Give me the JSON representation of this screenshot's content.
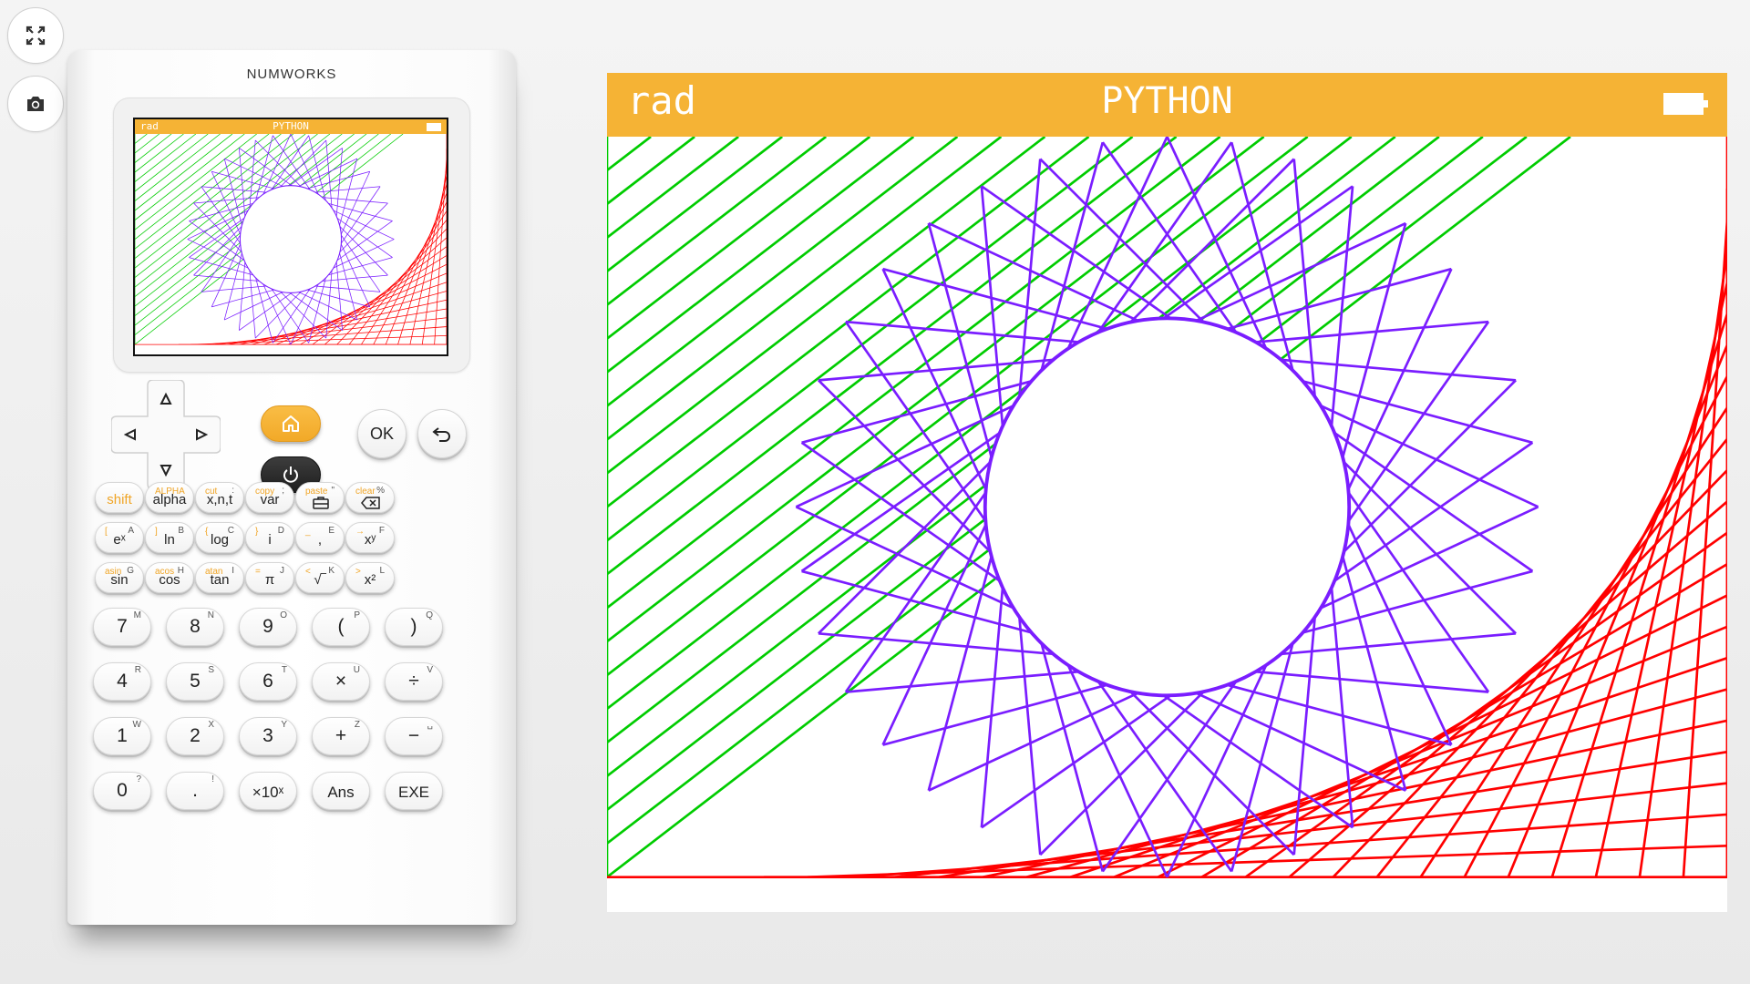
{
  "side_buttons": [
    {
      "name": "fullscreen-icon"
    },
    {
      "name": "camera-icon"
    }
  ],
  "calculator": {
    "brand": "NUMWORKS",
    "screen": {
      "angle_mode": "rad",
      "app_title": "PYTHON"
    },
    "function_keys": [
      [
        {
          "main": "shift",
          "sec": "",
          "alt": ""
        },
        {
          "main": "alpha",
          "sec": "ALPHA",
          "alt": ""
        },
        {
          "main": "x,n,t",
          "sec": "cut",
          "alt": ":"
        },
        {
          "main": "var",
          "sec": "copy",
          "alt": ";"
        },
        {
          "main": "",
          "sec": "paste",
          "alt": "\""
        },
        {
          "main": "",
          "sec": "clear",
          "alt": "%"
        }
      ],
      [
        {
          "main": "eˣ",
          "sec": "[",
          "alt": "A"
        },
        {
          "main": "ln",
          "sec": "]",
          "alt": "B"
        },
        {
          "main": "log",
          "sec": "{",
          "alt": "C"
        },
        {
          "main": "i",
          "sec": "}",
          "alt": "D"
        },
        {
          "main": ",",
          "sec": "_",
          "alt": "E"
        },
        {
          "main": "xʸ",
          "sec": "→",
          "alt": "F"
        }
      ],
      [
        {
          "main": "sin",
          "sec": "asin",
          "alt": "G"
        },
        {
          "main": "cos",
          "sec": "acos",
          "alt": "H"
        },
        {
          "main": "tan",
          "sec": "atan",
          "alt": "I"
        },
        {
          "main": "π",
          "sec": "=",
          "alt": "J"
        },
        {
          "main": "√‾",
          "sec": "<",
          "alt": "K"
        },
        {
          "main": "x²",
          "sec": ">",
          "alt": "L"
        }
      ]
    ],
    "number_keys": [
      [
        {
          "main": "7",
          "alt": "M"
        },
        {
          "main": "8",
          "alt": "N"
        },
        {
          "main": "9",
          "alt": "O"
        },
        {
          "main": "(",
          "alt": "P"
        },
        {
          "main": ")",
          "alt": "Q"
        }
      ],
      [
        {
          "main": "4",
          "alt": "R"
        },
        {
          "main": "5",
          "alt": "S"
        },
        {
          "main": "6",
          "alt": "T"
        },
        {
          "main": "×",
          "alt": "U"
        },
        {
          "main": "÷",
          "alt": "V"
        }
      ],
      [
        {
          "main": "1",
          "alt": "W"
        },
        {
          "main": "2",
          "alt": "X"
        },
        {
          "main": "3",
          "alt": "Y"
        },
        {
          "main": "+",
          "alt": "Z"
        },
        {
          "main": "−",
          "alt": "␣"
        }
      ],
      [
        {
          "main": "0",
          "alt": "?"
        },
        {
          "main": ".",
          "alt": "!"
        },
        {
          "main": "×10ˣ",
          "alt": ""
        },
        {
          "main": "Ans",
          "alt": ""
        },
        {
          "main": "EXE",
          "alt": ""
        }
      ]
    ],
    "ok_label": "OK"
  },
  "display": {
    "angle_mode": "rad",
    "app_title": "PYTHON"
  },
  "colors": {
    "header": "#f5b335",
    "green": "#00cc00",
    "purple": "#7a1dff",
    "red": "#ff0000"
  }
}
